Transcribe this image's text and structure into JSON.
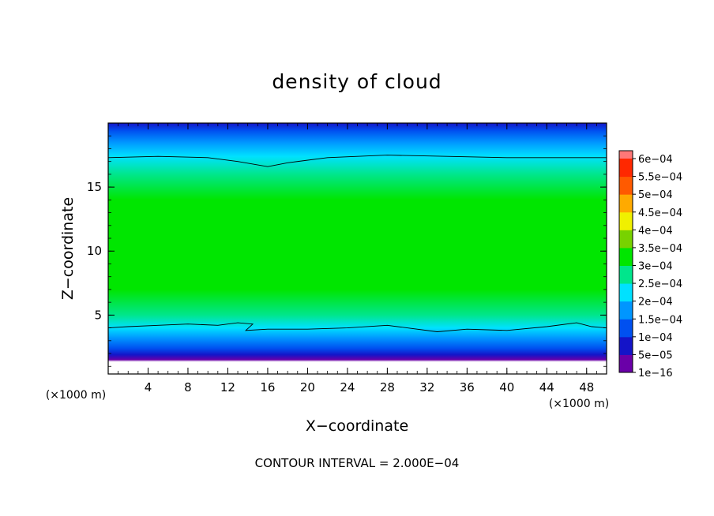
{
  "chart_data": {
    "type": "heatmap",
    "title": "density of cloud",
    "xlabel": "X−coordinate",
    "ylabel": "Z−coordinate",
    "x_unit_left": "(×1000 m)",
    "x_unit_right": "(×1000 m)",
    "xlim": [
      0,
      50
    ],
    "ylim": [
      0.4,
      20
    ],
    "x_ticks": [
      4,
      8,
      12,
      16,
      20,
      24,
      28,
      32,
      36,
      40,
      44,
      48
    ],
    "y_ticks": [
      5,
      10,
      15
    ],
    "note": "CONTOUR INTERVAL = 2.000E−04",
    "colorbar": {
      "labels": [
        "1e−16",
        "5e−05",
        "1e−04",
        "1.5e−04",
        "2e−04",
        "2.5e−04",
        "3e−04",
        "3.5e−04",
        "4e−04",
        "4.5e−04",
        "5e−04",
        "5.5e−04",
        "6e−04"
      ],
      "values": [
        1e-16,
        5e-05,
        0.0001,
        0.00015,
        0.0002,
        0.00025,
        0.0003,
        0.00035,
        0.0004,
        0.00045,
        0.0005,
        0.00055,
        0.0006
      ],
      "colors": [
        "#6a00a8",
        "#1414c8",
        "#0050f0",
        "#0096ff",
        "#00e1ff",
        "#00e68c",
        "#00e600",
        "#78d200",
        "#f0f000",
        "#ffaa00",
        "#ff5a00",
        "#ff2800",
        "#ff7878"
      ]
    },
    "contour_lines": [
      {
        "level": 0.0002,
        "points": [
          [
            0,
            17.3
          ],
          [
            5,
            17.4
          ],
          [
            10,
            17.3
          ],
          [
            13,
            17.0
          ],
          [
            16,
            16.6
          ],
          [
            18,
            16.9
          ],
          [
            22,
            17.3
          ],
          [
            28,
            17.5
          ],
          [
            34,
            17.4
          ],
          [
            40,
            17.3
          ],
          [
            46,
            17.3
          ],
          [
            50,
            17.3
          ]
        ]
      },
      {
        "level": 0.0002,
        "points": [
          [
            0,
            4.0
          ],
          [
            2,
            4.1
          ],
          [
            5,
            4.2
          ],
          [
            8,
            4.3
          ],
          [
            11,
            4.2
          ],
          [
            13,
            4.4
          ],
          [
            14.5,
            4.3
          ],
          [
            13.8,
            3.8
          ],
          [
            16,
            3.9
          ],
          [
            20,
            3.9
          ],
          [
            24,
            4.0
          ],
          [
            28,
            4.2
          ],
          [
            30,
            4.0
          ],
          [
            33,
            3.7
          ],
          [
            36,
            3.9
          ],
          [
            40,
            3.8
          ],
          [
            44,
            4.1
          ],
          [
            47,
            4.4
          ],
          [
            48.5,
            4.1
          ],
          [
            50,
            4.0
          ]
        ]
      }
    ],
    "profile": [
      {
        "z": 0.4,
        "value": null
      },
      {
        "z": 1.3,
        "value": null
      },
      {
        "z": 1.5,
        "value": 1e-16
      },
      {
        "z": 1.9,
        "value": 5e-05
      },
      {
        "z": 2.4,
        "value": 0.0001
      },
      {
        "z": 3.2,
        "value": 0.00015
      },
      {
        "z": 4.0,
        "value": 0.0002
      },
      {
        "z": 5.0,
        "value": 0.00025
      },
      {
        "z": 7.0,
        "value": 0.0003
      },
      {
        "z": 14.0,
        "value": 0.0003
      },
      {
        "z": 16.0,
        "value": 0.00025
      },
      {
        "z": 17.4,
        "value": 0.0002
      },
      {
        "z": 18.5,
        "value": 0.00015
      },
      {
        "z": 19.4,
        "value": 0.0001
      },
      {
        "z": 20.0,
        "value": 5e-05
      }
    ]
  }
}
